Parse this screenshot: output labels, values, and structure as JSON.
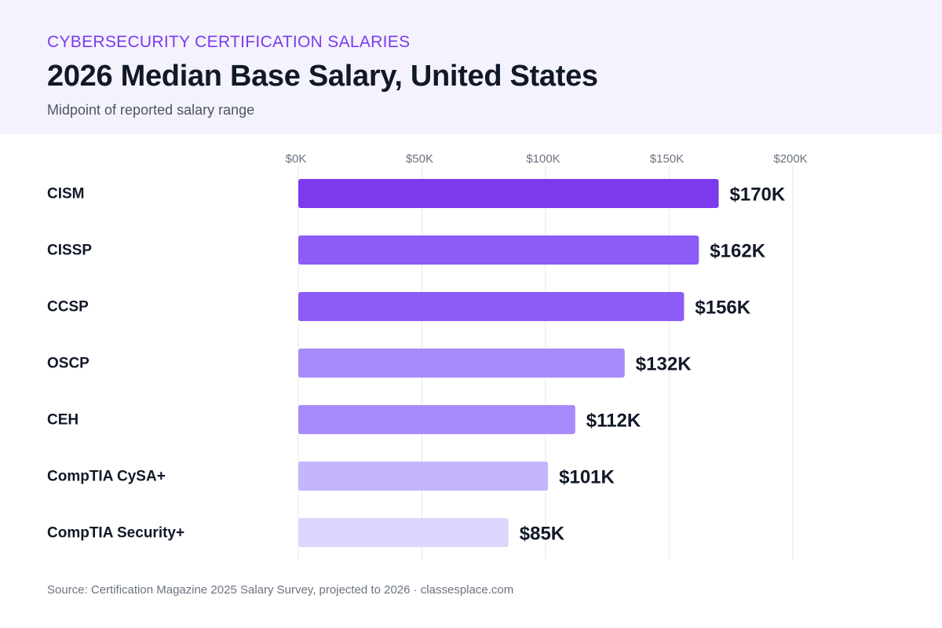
{
  "header": {
    "eyebrow": "CYBERSECURITY CERTIFICATION SALARIES",
    "title": "2026 Median Base Salary, United States",
    "subtitle": "Midpoint of reported salary range"
  },
  "footer": {
    "source": "Source: Certification Magazine 2025 Salary Survey, projected to 2026 · classesplace.com"
  },
  "chart_data": {
    "type": "bar",
    "orientation": "horizontal",
    "title": "2026 Median Base Salary, United States",
    "subtitle": "Midpoint of reported salary range",
    "xlabel": "",
    "ylabel": "",
    "xlim": [
      0,
      200
    ],
    "ticks": [
      0,
      50,
      100,
      150,
      200
    ],
    "tick_labels": [
      "$0K",
      "$50K",
      "$100K",
      "$150K",
      "$200K"
    ],
    "grid": true,
    "categories": [
      "CISM",
      "CISSP",
      "CCSP",
      "OSCP",
      "CEH",
      "CompTIA CySA+",
      "CompTIA Security+"
    ],
    "values": [
      170,
      162,
      156,
      132,
      112,
      101,
      85
    ],
    "value_labels": [
      "$170K",
      "$162K",
      "$156K",
      "$132K",
      "$112K",
      "$101K",
      "$85K"
    ],
    "colors": [
      "#7c3aed",
      "#8b5cf6",
      "#8b5cf6",
      "#a78bfa",
      "#a78bfa",
      "#c4b5fd",
      "#ddd6fe"
    ]
  }
}
